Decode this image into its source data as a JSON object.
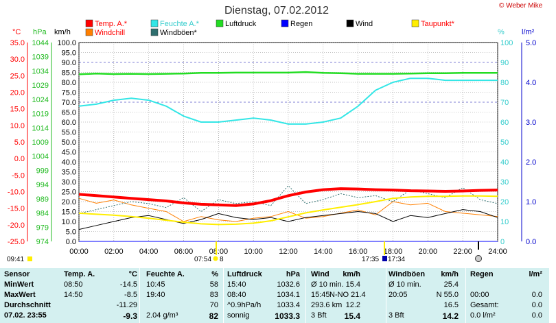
{
  "colors": {
    "temp": "#ff0000",
    "humidity": "#33e6e6",
    "pressure": "#22dd22",
    "rain": "#0000ff",
    "wind": "#000000",
    "dewpoint": "#ffee00",
    "windchill": "#ff7f00",
    "gust": "#2f6f6f",
    "axis_temp": "#ff0000",
    "axis_pressure": "#22bb22",
    "axis_humidity": "#33cccc",
    "axis_rain": "#0000cc",
    "grid": "#000000",
    "stats_bg": "#d4f0f0"
  },
  "watermark": "© Weber Mike",
  "chart_data": {
    "type": "line",
    "title": "Dienstag, 07.02.2012",
    "legend": [
      {
        "label": "Temp. A.*",
        "color": "#ff0000"
      },
      {
        "label": "Feuchte A.*",
        "color": "#33e6e6"
      },
      {
        "label": "Luftdruck",
        "color": "#22dd22"
      },
      {
        "label": "Regen",
        "color": "#0000ff"
      },
      {
        "label": "Wind",
        "color": "#000000"
      },
      {
        "label": "Taupunkt*",
        "color": "#ffee00"
      },
      {
        "label": "Windchill",
        "color": "#ff7f00"
      },
      {
        "label": "Windböen*",
        "color": "#2f6f6f"
      }
    ],
    "axes": {
      "temp": {
        "unit": "°C",
        "range": [
          -25,
          35
        ],
        "ticks": [
          "35.0",
          "30.0",
          "25.0",
          "20.0",
          "15.0",
          "10.0",
          "5.0",
          "0.0",
          "-5.0",
          "-10.0",
          "-15.0",
          "-20.0",
          "-25.0"
        ]
      },
      "pressure": {
        "unit": "hPa",
        "range": [
          974,
          1044
        ],
        "ticks": [
          "1044",
          "1039",
          "1034",
          "1029",
          "1024",
          "1019",
          "1014",
          "1009",
          "1004",
          "999",
          "994",
          "989",
          "984",
          "979",
          "974"
        ]
      },
      "wind": {
        "unit": "km/h",
        "range": [
          0,
          100
        ],
        "ticks": [
          "100.0",
          "95.0",
          "90.0",
          "85.0",
          "80.0",
          "75.0",
          "70.0",
          "65.0",
          "60.0",
          "55.0",
          "50.0",
          "45.0",
          "40.0",
          "35.0",
          "30.0",
          "25.0",
          "20.0",
          "15.0",
          "10.0",
          "5.0",
          "0.0"
        ]
      },
      "humidity": {
        "unit": "%",
        "range": [
          0,
          100
        ],
        "ticks": [
          "100",
          "90",
          "80",
          "70",
          "60",
          "50",
          "40",
          "30",
          "20",
          "10",
          "0"
        ]
      },
      "rain": {
        "unit": "l/m²",
        "range": [
          0,
          5
        ],
        "ticks": [
          "5.0",
          "4.0",
          "3.0",
          "2.0",
          "1.0",
          "0.0"
        ]
      },
      "x": {
        "range_hours": [
          0,
          24
        ],
        "ticks": [
          "00:00",
          "02:00",
          "04:00",
          "06:00",
          "08:00",
          "10:00",
          "12:00",
          "14:00",
          "16:00",
          "18:00",
          "20:00",
          "22:00",
          "24:00"
        ]
      }
    },
    "x_hours": [
      0,
      1,
      2,
      3,
      4,
      5,
      6,
      7,
      8,
      9,
      10,
      11,
      12,
      13,
      14,
      15,
      16,
      17,
      18,
      19,
      20,
      21,
      22,
      23,
      24
    ],
    "series": [
      {
        "name": "Temp. A.*",
        "axis": "temp",
        "values": [
          -10.8,
          -11.2,
          -11.6,
          -12.0,
          -12.4,
          -12.8,
          -13.4,
          -13.8,
          -14.0,
          -14.2,
          -13.7,
          -12.7,
          -11.2,
          -10.1,
          -9.4,
          -9.1,
          -9.2,
          -9.4,
          -9.5,
          -9.7,
          -9.8,
          -9.9,
          -9.8,
          -9.6,
          -9.5
        ]
      },
      {
        "name": "Feuchte A.*",
        "axis": "humidity",
        "values": [
          68,
          69,
          71,
          72,
          71,
          68,
          63,
          60,
          60,
          61,
          62,
          61,
          59,
          59,
          60,
          62,
          68,
          76,
          80,
          82,
          82,
          81,
          81,
          81,
          81
        ]
      },
      {
        "name": "Luftdruck",
        "axis": "pressure",
        "values": [
          1032.8,
          1033.1,
          1032.9,
          1033.0,
          1032.9,
          1033.0,
          1033.1,
          1033.3,
          1033.3,
          1033.4,
          1033.4,
          1033.4,
          1033.4,
          1033.6,
          1033.3,
          1033.2,
          1033.0,
          1033.0,
          1033.0,
          1033.1,
          1033.2,
          1033.2,
          1033.3,
          1033.3,
          1033.3
        ]
      },
      {
        "name": "Taupunkt*",
        "axis": "temp",
        "values": [
          -16.5,
          -16.8,
          -17.1,
          -17.5,
          -18.0,
          -18.6,
          -19.2,
          -19.7,
          -19.9,
          -19.8,
          -19.5,
          -18.8,
          -17.6,
          -16.4,
          -15.5,
          -14.7,
          -13.9,
          -13.0,
          -12.0,
          -11.6,
          -11.4,
          -11.4,
          -11.3,
          -11.3,
          -11.4
        ]
      },
      {
        "name": "Windchill",
        "axis": "temp",
        "values": [
          -12.0,
          -13.5,
          -12.5,
          -14.0,
          -15.0,
          -16.0,
          -19.0,
          -17.5,
          -18.5,
          -19.0,
          -18.0,
          -17.5,
          -16.0,
          -18.0,
          -17.5,
          -16.5,
          -15.5,
          -17.0,
          -13.0,
          -14.0,
          -13.5,
          -16.0,
          -16.5,
          -17.0,
          -17.5
        ]
      },
      {
        "name": "Wind",
        "axis": "wind",
        "values": [
          6,
          8,
          10,
          12,
          13,
          11,
          9,
          11,
          14,
          12,
          11,
          12,
          10,
          12,
          13,
          14,
          15,
          14,
          10,
          13,
          12,
          14,
          16,
          15,
          12
        ]
      },
      {
        "name": "Windböen*",
        "axis": "wind",
        "values": [
          14,
          16,
          18,
          20,
          19,
          17,
          22,
          15,
          21,
          19,
          20,
          18,
          28,
          19,
          21,
          24,
          22,
          23,
          20,
          26,
          24,
          22,
          27,
          21,
          19
        ]
      },
      {
        "name": "Regen",
        "axis": "rain",
        "values": [
          0,
          0,
          0,
          0,
          0,
          0,
          0,
          0,
          0,
          0,
          0,
          0,
          0,
          0,
          0,
          0,
          0,
          0,
          0,
          0,
          0,
          0,
          0,
          0,
          0
        ]
      }
    ],
    "markers": {
      "sunrise": "07:54",
      "sunset": "17:35",
      "moonrise": "09:41",
      "moon_label": "17:34",
      "marker_suffix": "8"
    },
    "grid": true
  },
  "stats": {
    "headers": [
      "Sensor",
      "Temp. A.",
      "°C",
      "Feuchte A.",
      "%",
      "Luftdruck",
      "hPa",
      "Wind",
      "km/h",
      "Windböen",
      "km/h",
      "Regen",
      "l/m²"
    ],
    "rows": [
      [
        "MinWert",
        "08:50",
        "-14.5",
        "10:45",
        "58",
        "15:40",
        "1032.6",
        "Ø 10 min.",
        "15.4",
        "Ø 10 min.",
        "25.4",
        "",
        ""
      ],
      [
        "MaxWert",
        "14:50",
        "-8.5",
        "19:40",
        "83",
        "08:40",
        "1034.1",
        "15:45",
        "N-NO 21.4",
        "20:05",
        "N 55.0",
        "00:00",
        "0.0"
      ],
      [
        "Durchschnitt",
        "",
        "-11.29",
        "",
        "70",
        "^0.9hPa/h",
        "1033.4",
        "293.6 km",
        "12.2",
        "",
        "16.5",
        "Gesamt:",
        "0.0"
      ],
      [
        "07.02. 23:55",
        "",
        "-9.3",
        "2.04 g/m³",
        "82",
        "sonnig",
        "1033.3",
        "3 Bft",
        "15.4",
        "3 Bft",
        "14.2",
        "0.0 l/m²",
        "0.0"
      ]
    ]
  }
}
